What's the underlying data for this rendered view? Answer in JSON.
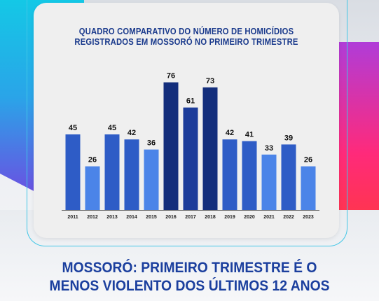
{
  "colors": {
    "title": "#1a3a8c",
    "headline": "#1b3f9e",
    "bar_light": "#4b84e8",
    "bar_mid": "#2e5cc6",
    "bar_dark": "#132e7c",
    "label": "#111111"
  },
  "chart_data": {
    "type": "bar",
    "title_lines": [
      "QUADRO COMPARATIVO DO NÚMERO DE HOMICÍDIOS",
      "REGISTRADOS EM MOSSORÓ NO PRIMEIRO TRIMESTRE"
    ],
    "categories": [
      "2011",
      "2012",
      "2013",
      "2014",
      "2015",
      "2016",
      "2017",
      "2018",
      "2019",
      "2020",
      "2021",
      "2022",
      "2023"
    ],
    "values": [
      45,
      26,
      45,
      42,
      36,
      76,
      61,
      73,
      42,
      41,
      33,
      39,
      26
    ],
    "bar_colors": [
      "#2e5cc6",
      "#4b84e8",
      "#2e5cc6",
      "#2e5cc6",
      "#4b84e8",
      "#132e7c",
      "#1c3c9a",
      "#132e7c",
      "#2e5cc6",
      "#2e5cc6",
      "#4b84e8",
      "#2e5cc6",
      "#4b84e8"
    ],
    "ylim": [
      0,
      80
    ],
    "grid": false,
    "data_labels": true
  },
  "headline": {
    "line1": "MOSSORÓ: PRIMEIRO TRIMESTRE É O",
    "line2": "MENOS VIOLENTO DOS ÚLTIMOS 12 ANOS"
  }
}
